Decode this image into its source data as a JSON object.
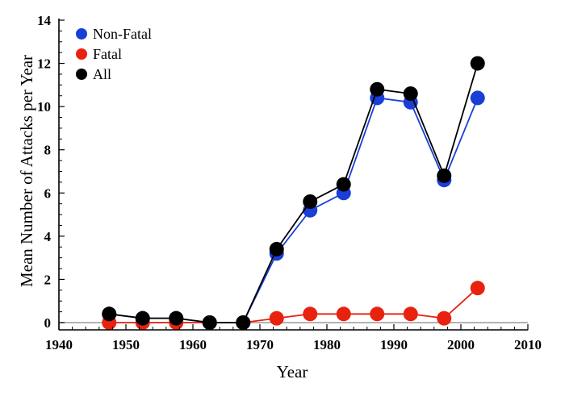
{
  "chart_data": {
    "type": "line",
    "xlabel": "Year",
    "ylabel": "Mean Number of Attacks per Year",
    "xlim": [
      1940,
      2010
    ],
    "ylim": [
      0,
      14
    ],
    "x_ticks": [
      1940,
      1950,
      1960,
      1970,
      1980,
      1990,
      2000,
      2010
    ],
    "y_ticks": [
      0,
      2,
      4,
      6,
      8,
      10,
      12,
      14
    ],
    "x_tick_labels": [
      "1940",
      "1950",
      "1960",
      "1970",
      "1980",
      "1990",
      "2000",
      "2010"
    ],
    "y_tick_labels": [
      "0",
      "2",
      "4",
      "6",
      "8",
      "10",
      "12",
      "14"
    ],
    "x": [
      1947.5,
      1952.5,
      1957.5,
      1962.5,
      1967.5,
      1972.5,
      1977.5,
      1982.5,
      1987.5,
      1992.5,
      1997.5,
      2002.5
    ],
    "series": [
      {
        "name": "Non-Fatal",
        "color": "#1a3fd6",
        "values": [
          0.4,
          0.2,
          0.2,
          0.0,
          0.0,
          3.2,
          5.2,
          6.0,
          10.4,
          10.2,
          6.6,
          10.4
        ]
      },
      {
        "name": "Fatal",
        "color": "#e8220f",
        "values": [
          0.0,
          0.0,
          0.0,
          0.0,
          0.0,
          0.2,
          0.4,
          0.4,
          0.4,
          0.4,
          0.2,
          1.6
        ]
      },
      {
        "name": "All",
        "color": "#000000",
        "values": [
          0.4,
          0.2,
          0.2,
          0.0,
          0.0,
          3.4,
          5.6,
          6.4,
          10.8,
          10.6,
          6.8,
          12.0
        ]
      }
    ],
    "legend_position": "top-left",
    "grid": false,
    "zero_line": true
  }
}
